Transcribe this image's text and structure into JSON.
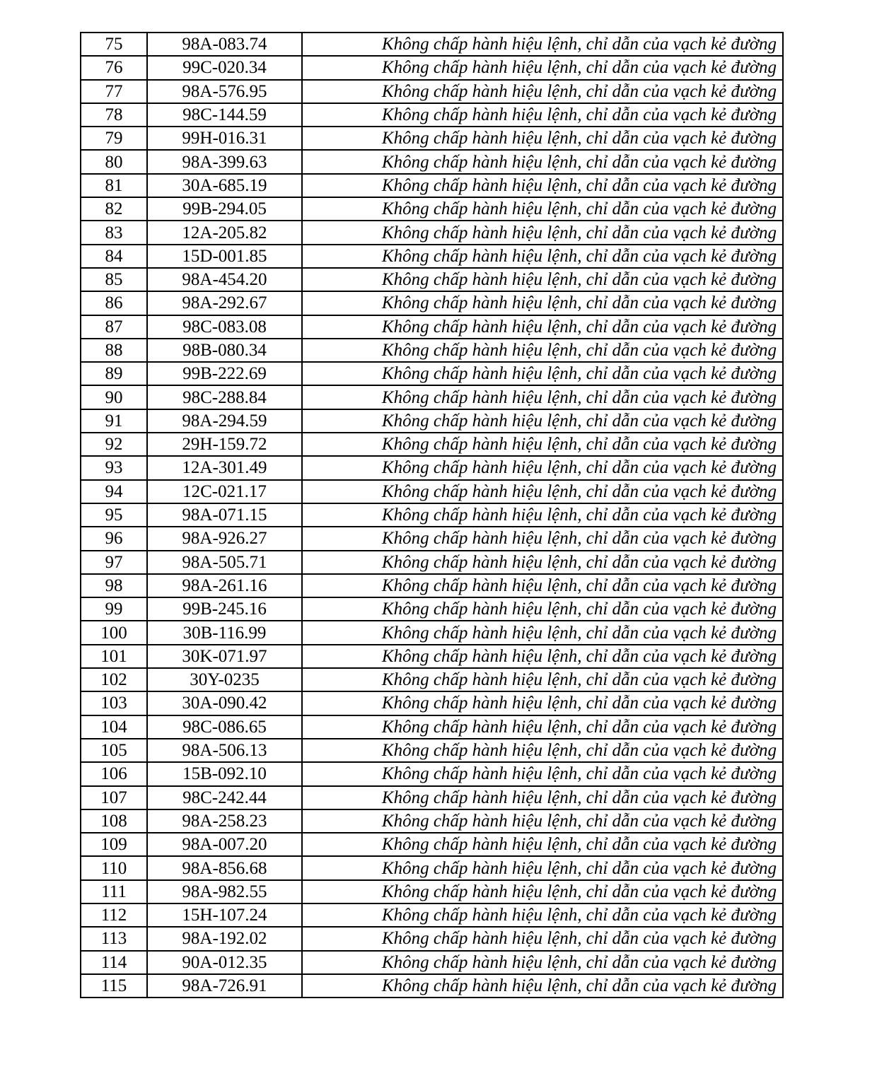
{
  "table": {
    "rows": [
      {
        "stt": "75",
        "plate": "98A-083.74",
        "violation": "Không chấp hành hiệu lệnh, chỉ dẫn của vạch kẻ đường"
      },
      {
        "stt": "76",
        "plate": "99C-020.34",
        "violation": "Không chấp hành hiệu lệnh, chỉ dẫn của vạch kẻ đường"
      },
      {
        "stt": "77",
        "plate": "98A-576.95",
        "violation": "Không chấp hành hiệu lệnh, chỉ dẫn của vạch kẻ đường"
      },
      {
        "stt": "78",
        "plate": "98C-144.59",
        "violation": "Không chấp hành hiệu lệnh, chỉ dẫn của vạch kẻ đường"
      },
      {
        "stt": "79",
        "plate": "99H-016.31",
        "violation": "Không chấp hành hiệu lệnh, chỉ dẫn của vạch kẻ đường"
      },
      {
        "stt": "80",
        "plate": "98A-399.63",
        "violation": "Không chấp hành hiệu lệnh, chỉ dẫn của vạch kẻ đường"
      },
      {
        "stt": "81",
        "plate": "30A-685.19",
        "violation": "Không chấp hành hiệu lệnh, chỉ dẫn của vạch kẻ đường"
      },
      {
        "stt": "82",
        "plate": "99B-294.05",
        "violation": "Không chấp hành hiệu lệnh, chỉ dẫn của vạch kẻ đường"
      },
      {
        "stt": "83",
        "plate": "12A-205.82",
        "violation": "Không chấp hành hiệu lệnh, chỉ dẫn của vạch kẻ đường"
      },
      {
        "stt": "84",
        "plate": "15D-001.85",
        "violation": "Không chấp hành hiệu lệnh, chỉ dẫn của vạch kẻ đường"
      },
      {
        "stt": "85",
        "plate": "98A-454.20",
        "violation": "Không chấp hành hiệu lệnh, chỉ dẫn của vạch kẻ đường"
      },
      {
        "stt": "86",
        "plate": "98A-292.67",
        "violation": "Không chấp hành hiệu lệnh, chỉ dẫn của vạch kẻ đường"
      },
      {
        "stt": "87",
        "plate": "98C-083.08",
        "violation": "Không chấp hành hiệu lệnh, chỉ dẫn của vạch kẻ đường"
      },
      {
        "stt": "88",
        "plate": "98B-080.34",
        "violation": "Không chấp hành hiệu lệnh, chỉ dẫn của vạch kẻ đường"
      },
      {
        "stt": "89",
        "plate": "99B-222.69",
        "violation": "Không chấp hành hiệu lệnh, chỉ dẫn của vạch kẻ đường"
      },
      {
        "stt": "90",
        "plate": "98C-288.84",
        "violation": "Không chấp hành hiệu lệnh, chỉ dẫn của vạch kẻ đường"
      },
      {
        "stt": "91",
        "plate": "98A-294.59",
        "violation": "Không chấp hành hiệu lệnh, chỉ dẫn của vạch kẻ đường"
      },
      {
        "stt": "92",
        "plate": "29H-159.72",
        "violation": "Không chấp hành hiệu lệnh, chỉ dẫn của vạch kẻ đường"
      },
      {
        "stt": "93",
        "plate": "12A-301.49",
        "violation": "Không chấp hành hiệu lệnh, chỉ dẫn của vạch kẻ đường"
      },
      {
        "stt": "94",
        "plate": "12C-021.17",
        "violation": "Không chấp hành hiệu lệnh, chỉ dẫn của vạch kẻ đường"
      },
      {
        "stt": "95",
        "plate": "98A-071.15",
        "violation": "Không chấp hành hiệu lệnh, chỉ dẫn của vạch kẻ đường"
      },
      {
        "stt": "96",
        "plate": "98A-926.27",
        "violation": "Không chấp hành hiệu lệnh, chỉ dẫn của vạch kẻ đường"
      },
      {
        "stt": "97",
        "plate": "98A-505.71",
        "violation": "Không chấp hành hiệu lệnh, chỉ dẫn của vạch kẻ đường"
      },
      {
        "stt": "98",
        "plate": "98A-261.16",
        "violation": "Không chấp hành hiệu lệnh, chỉ dẫn của vạch kẻ đường"
      },
      {
        "stt": "99",
        "plate": "99B-245.16",
        "violation": "Không chấp hành hiệu lệnh, chỉ dẫn của vạch kẻ đường"
      },
      {
        "stt": "100",
        "plate": "30B-116.99",
        "violation": "Không chấp hành hiệu lệnh, chỉ dẫn của vạch kẻ đường"
      },
      {
        "stt": "101",
        "plate": "30K-071.97",
        "violation": "Không chấp hành hiệu lệnh, chỉ dẫn của vạch kẻ đường"
      },
      {
        "stt": "102",
        "plate": "30Y-0235",
        "violation": "Không chấp hành hiệu lệnh, chỉ dẫn của vạch kẻ đường"
      },
      {
        "stt": "103",
        "plate": "30A-090.42",
        "violation": "Không chấp hành hiệu lệnh, chỉ dẫn của vạch kẻ đường"
      },
      {
        "stt": "104",
        "plate": "98C-086.65",
        "violation": "Không chấp hành hiệu lệnh, chỉ dẫn của vạch kẻ đường"
      },
      {
        "stt": "105",
        "plate": "98A-506.13",
        "violation": "Không chấp hành hiệu lệnh, chỉ dẫn của vạch kẻ đường"
      },
      {
        "stt": "106",
        "plate": "15B-092.10",
        "violation": "Không chấp hành hiệu lệnh, chỉ dẫn của vạch kẻ đường"
      },
      {
        "stt": "107",
        "plate": "98C-242.44",
        "violation": "Không chấp hành hiệu lệnh, chỉ dẫn của vạch kẻ đường"
      },
      {
        "stt": "108",
        "plate": "98A-258.23",
        "violation": "Không chấp hành hiệu lệnh, chỉ dẫn của vạch kẻ đường"
      },
      {
        "stt": "109",
        "plate": "98A-007.20",
        "violation": "Không chấp hành hiệu lệnh, chỉ dẫn của vạch kẻ đường"
      },
      {
        "stt": "110",
        "plate": "98A-856.68",
        "violation": "Không chấp hành hiệu lệnh, chỉ dẫn của vạch kẻ đường"
      },
      {
        "stt": "111",
        "plate": "98A-982.55",
        "violation": "Không chấp hành hiệu lệnh, chỉ dẫn của vạch kẻ đường"
      },
      {
        "stt": "112",
        "plate": "15H-107.24",
        "violation": "Không chấp hành hiệu lệnh, chỉ dẫn của vạch kẻ đường"
      },
      {
        "stt": "113",
        "plate": "98A-192.02",
        "violation": "Không chấp hành hiệu lệnh, chỉ dẫn của vạch kẻ đường"
      },
      {
        "stt": "114",
        "plate": "90A-012.35",
        "violation": "Không chấp hành hiệu lệnh, chỉ dẫn của vạch kẻ đường"
      },
      {
        "stt": "115",
        "plate": "98A-726.91",
        "violation": "Không chấp hành hiệu lệnh, chỉ dẫn của vạch kẻ đường"
      }
    ]
  }
}
